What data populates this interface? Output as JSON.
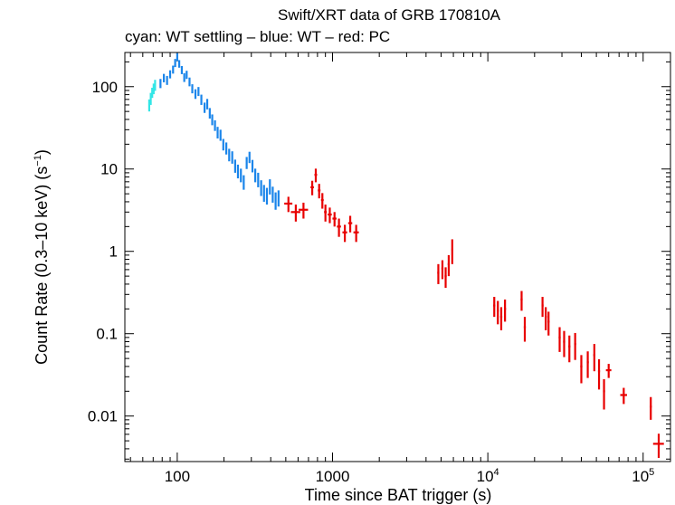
{
  "chart_data": {
    "type": "scatter",
    "title": "Swift/XRT data of GRB 170810A",
    "subtitle": "cyan: WT settling – blue: WT – red: PC",
    "xlabel": "Time since BAT trigger (s)",
    "ylabel": "Count Rate (0.3–10 keV) (s",
    "ylabel_unit_exp": "−1",
    "ylabel_close": ")",
    "xscale": "log",
    "yscale": "log",
    "xlim": [
      46,
      150000
    ],
    "ylim": [
      0.0028,
      260
    ],
    "x_ticks": [
      {
        "value": 100,
        "base": "100",
        "exp": ""
      },
      {
        "value": 1000,
        "base": "1000",
        "exp": ""
      },
      {
        "value": 10000,
        "base": "10",
        "exp": "4"
      },
      {
        "value": 100000,
        "base": "10",
        "exp": "5"
      }
    ],
    "y_ticks": [
      {
        "value": 100,
        "label": "100"
      },
      {
        "value": 10,
        "label": "10"
      },
      {
        "value": 1,
        "label": "1"
      },
      {
        "value": 0.1,
        "label": "0.1"
      },
      {
        "value": 0.01,
        "label": "0.01"
      }
    ],
    "series": [
      {
        "name": "WT settling",
        "color": "#33e6e6",
        "points": [
          [
            66,
            60,
            10
          ],
          [
            67.5,
            72,
            12
          ],
          [
            69,
            85,
            12
          ],
          [
            70.5,
            95,
            14
          ],
          [
            72,
            105,
            16
          ]
        ]
      },
      {
        "name": "WT",
        "color": "#1a85ea",
        "points": [
          [
            78,
            110,
            14
          ],
          [
            82,
            128,
            15
          ],
          [
            86,
            120,
            15
          ],
          [
            90,
            142,
            16
          ],
          [
            94,
            162,
            18
          ],
          [
            97,
            195,
            22
          ],
          [
            100,
            230,
            25
          ],
          [
            103,
            190,
            20
          ],
          [
            107,
            160,
            18
          ],
          [
            111,
            130,
            16
          ],
          [
            115,
            140,
            16
          ],
          [
            120,
            115,
            14
          ],
          [
            125,
            95,
            12
          ],
          [
            131,
            82,
            11
          ],
          [
            137,
            88,
            11
          ],
          [
            143,
            70,
            10
          ],
          [
            150,
            56,
            8
          ],
          [
            156,
            62,
            9
          ],
          [
            162,
            48,
            7
          ],
          [
            168,
            40,
            6
          ],
          [
            175,
            34,
            5
          ],
          [
            182,
            28,
            4.5
          ],
          [
            190,
            26,
            4
          ],
          [
            198,
            20,
            3.2
          ],
          [
            207,
            18,
            3
          ],
          [
            216,
            15,
            2.6
          ],
          [
            226,
            14,
            2.4
          ],
          [
            236,
            11,
            2
          ],
          [
            246,
            9.5,
            1.8
          ],
          [
            257,
            8.5,
            1.6
          ],
          [
            268,
            7,
            1.4
          ],
          [
            280,
            12,
            2
          ],
          [
            292,
            14,
            2.2
          ],
          [
            305,
            11,
            1.9
          ],
          [
            318,
            8.5,
            1.6
          ],
          [
            332,
            7.5,
            1.5
          ],
          [
            347,
            6,
            1.3
          ],
          [
            362,
            5.2,
            1.2
          ],
          [
            378,
            4.8,
            1.1
          ],
          [
            395,
            6.2,
            1.3
          ],
          [
            412,
            5,
            1.1
          ],
          [
            430,
            4.2,
            1
          ],
          [
            449,
            4.5,
            1
          ]
        ]
      },
      {
        "name": "PC",
        "color": "#e80000",
        "points": [
          [
            520,
            3.8,
            0.8,
            0.06
          ],
          [
            580,
            3.0,
            0.7,
            0.07
          ],
          [
            650,
            3.2,
            0.7,
            0.07
          ],
          [
            740,
            6.0,
            1.2,
            0.025
          ],
          [
            780,
            8.5,
            1.6,
            0.02
          ],
          [
            820,
            5.5,
            1.1,
            0.02
          ],
          [
            860,
            4.2,
            0.9,
            0.02
          ],
          [
            900,
            3.0,
            0.7,
            0.02
          ],
          [
            960,
            2.8,
            0.6,
            0.03
          ],
          [
            1030,
            2.5,
            0.5,
            0.03
          ],
          [
            1100,
            2.0,
            0.5,
            0.03
          ],
          [
            1200,
            1.7,
            0.4,
            0.035
          ],
          [
            1300,
            2.2,
            0.5,
            0.03
          ],
          [
            1420,
            1.7,
            0.4,
            0.04
          ],
          [
            4800,
            0.55,
            0.15,
            0.015
          ],
          [
            5100,
            0.62,
            0.16,
            0.015
          ],
          [
            5350,
            0.5,
            0.14,
            0.015
          ],
          [
            5600,
            0.7,
            0.2,
            0.015
          ],
          [
            5900,
            1.05,
            0.35,
            0.012
          ],
          [
            11000,
            0.22,
            0.06,
            0.015
          ],
          [
            11600,
            0.19,
            0.06,
            0.015
          ],
          [
            12200,
            0.16,
            0.05,
            0.015
          ],
          [
            12900,
            0.2,
            0.06,
            0.015
          ],
          [
            16500,
            0.26,
            0.07,
            0.015
          ],
          [
            17300,
            0.12,
            0.04,
            0.015
          ],
          [
            22500,
            0.22,
            0.06,
            0.015
          ],
          [
            23600,
            0.16,
            0.05,
            0.015
          ],
          [
            24600,
            0.14,
            0.045,
            0.015
          ],
          [
            29000,
            0.09,
            0.03,
            0.015
          ],
          [
            31000,
            0.08,
            0.028,
            0.015
          ],
          [
            33500,
            0.07,
            0.025,
            0.015
          ],
          [
            36500,
            0.075,
            0.027,
            0.015
          ],
          [
            40000,
            0.04,
            0.015,
            0.015
          ],
          [
            44000,
            0.045,
            0.016,
            0.015
          ],
          [
            48500,
            0.055,
            0.02,
            0.015
          ],
          [
            52000,
            0.035,
            0.014,
            0.015
          ],
          [
            56000,
            0.02,
            0.008,
            0.015
          ],
          [
            60000,
            0.036,
            0.007,
            0.04
          ],
          [
            75000,
            0.018,
            0.004,
            0.05
          ],
          [
            112000,
            0.013,
            0.004,
            0.015
          ],
          [
            126000,
            0.0046,
            0.0015,
            0.08
          ]
        ]
      }
    ]
  }
}
